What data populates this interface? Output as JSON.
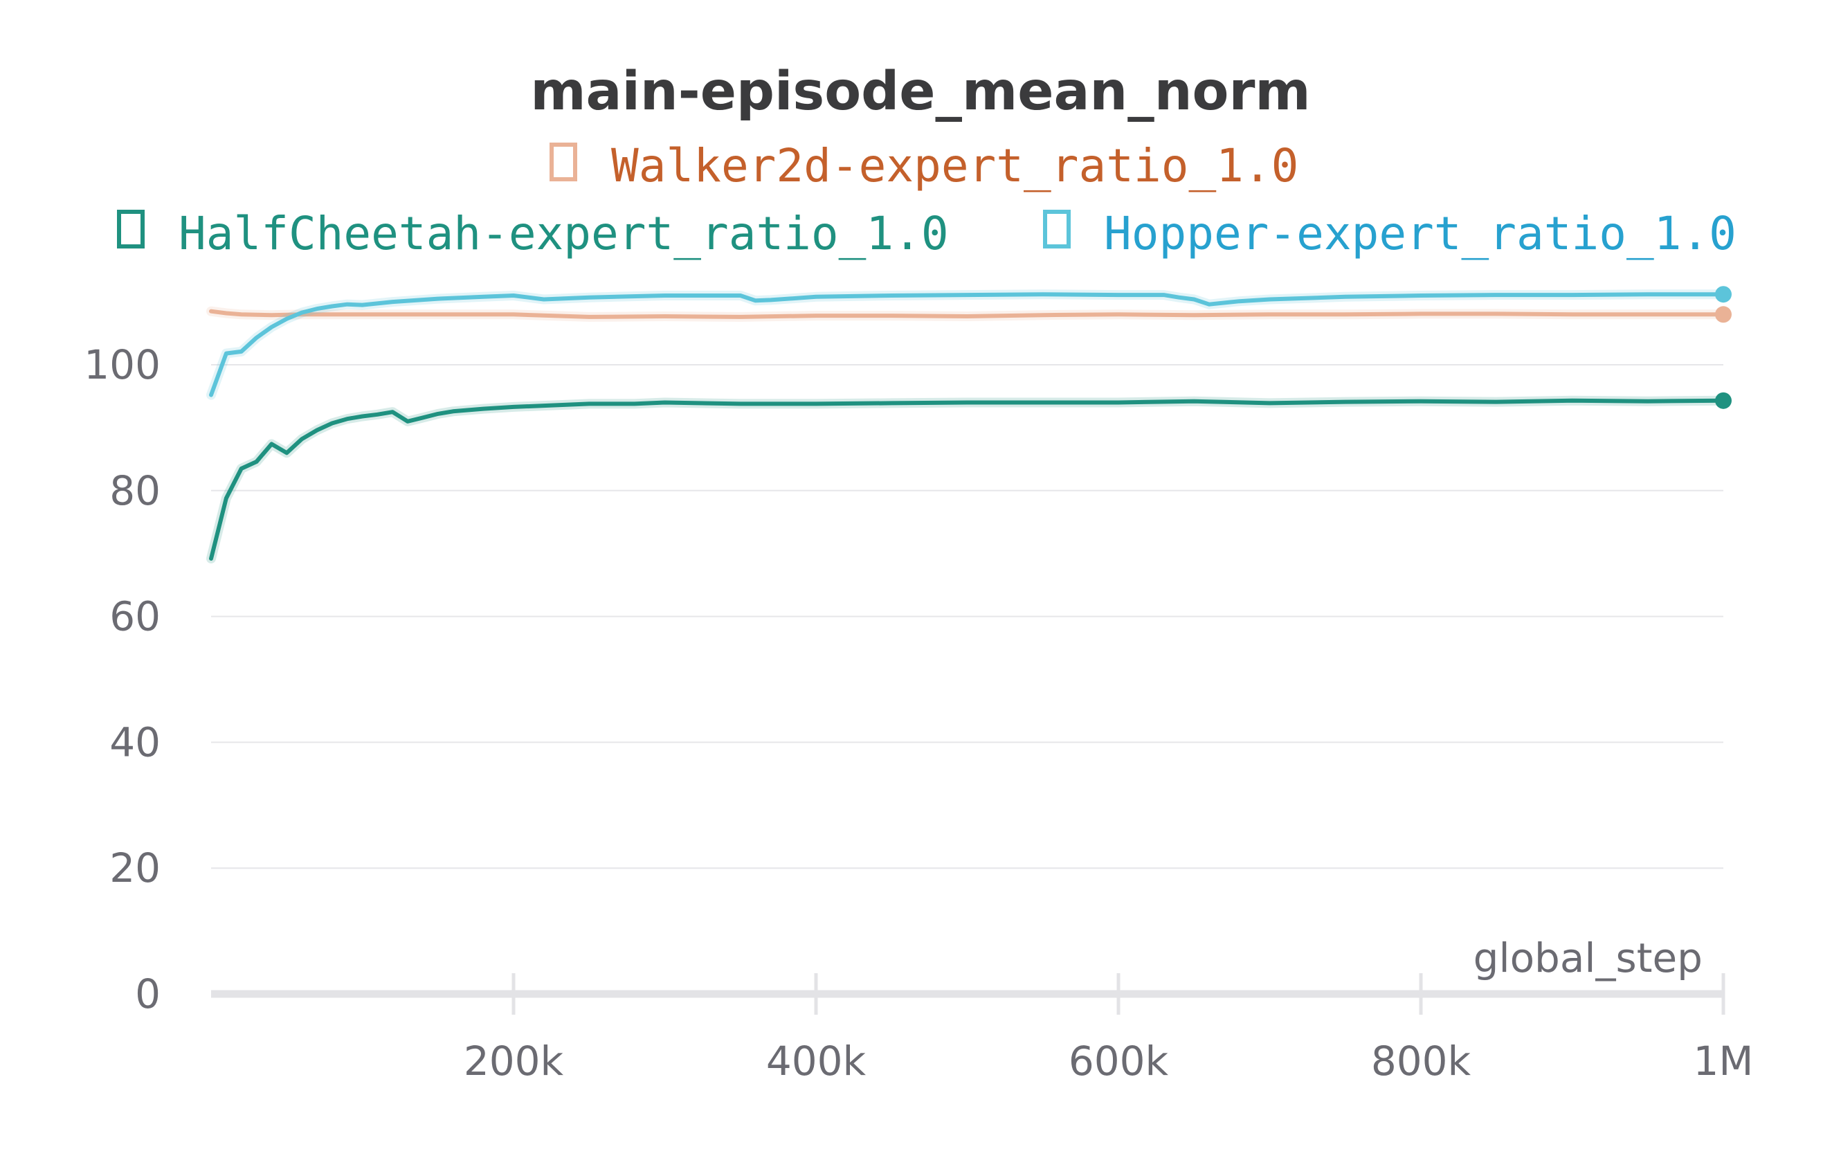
{
  "chart_data": {
    "type": "line",
    "title": "main-episode_mean_norm",
    "xlabel": "global_step",
    "ylabel": "",
    "xlim": [
      0,
      1000000
    ],
    "ylim": [
      0,
      112
    ],
    "x_ticks": [
      {
        "value": 200000,
        "label": "200k"
      },
      {
        "value": 400000,
        "label": "400k"
      },
      {
        "value": 600000,
        "label": "600k"
      },
      {
        "value": 800000,
        "label": "800k"
      },
      {
        "value": 1000000,
        "label": "1M"
      }
    ],
    "y_ticks": [
      {
        "value": 0,
        "label": "0"
      },
      {
        "value": 20,
        "label": "20"
      },
      {
        "value": 40,
        "label": "40"
      },
      {
        "value": 60,
        "label": "60"
      },
      {
        "value": 80,
        "label": "80"
      },
      {
        "value": 100,
        "label": "100"
      }
    ],
    "grid": true,
    "legend_position": "top",
    "series": [
      {
        "name": "Walker2d-expert_ratio_1.0",
        "color": "#eab296",
        "text_color": "#c4602b",
        "marker": "square-outline-glyph",
        "x": [
          0,
          10000,
          20000,
          40000,
          60000,
          80000,
          100000,
          150000,
          200000,
          250000,
          300000,
          350000,
          400000,
          450000,
          500000,
          550000,
          600000,
          650000,
          700000,
          750000,
          800000,
          850000,
          900000,
          950000,
          1000000
        ],
        "y": [
          108.5,
          108.2,
          108.0,
          107.9,
          108.0,
          108.0,
          108.0,
          108.0,
          108.0,
          107.6,
          107.7,
          107.6,
          107.8,
          107.8,
          107.7,
          107.9,
          108.0,
          107.9,
          108.0,
          108.0,
          108.1,
          108.1,
          108.0,
          108.0,
          108.0
        ]
      },
      {
        "name": "HalfCheetah-expert_ratio_1.0",
        "color": "#1f9180",
        "text_color": "#1f9180",
        "marker": "square-outline-glyph",
        "x": [
          0,
          10000,
          20000,
          30000,
          40000,
          50000,
          60000,
          70000,
          80000,
          90000,
          100000,
          110000,
          120000,
          130000,
          140000,
          150000,
          160000,
          180000,
          200000,
          220000,
          250000,
          280000,
          300000,
          350000,
          400000,
          450000,
          500000,
          550000,
          600000,
          650000,
          700000,
          750000,
          800000,
          850000,
          900000,
          950000,
          1000000
        ],
        "y": [
          69.2,
          78.8,
          83.5,
          84.6,
          87.4,
          86.0,
          88.2,
          89.6,
          90.7,
          91.4,
          91.8,
          92.1,
          92.5,
          91.0,
          91.6,
          92.2,
          92.6,
          93.0,
          93.3,
          93.5,
          93.8,
          93.8,
          94.0,
          93.8,
          93.8,
          93.9,
          94.0,
          94.0,
          94.0,
          94.2,
          93.9,
          94.1,
          94.2,
          94.1,
          94.3,
          94.2,
          94.3
        ]
      },
      {
        "name": "Hopper-expert_ratio_1.0",
        "color": "#5cc4da",
        "text_color": "#27a1cf",
        "marker": "square-outline-glyph",
        "x": [
          0,
          10000,
          20000,
          30000,
          40000,
          50000,
          60000,
          70000,
          80000,
          90000,
          100000,
          120000,
          150000,
          180000,
          200000,
          220000,
          250000,
          300000,
          350000,
          360000,
          370000,
          400000,
          450000,
          500000,
          550000,
          600000,
          630000,
          640000,
          650000,
          660000,
          680000,
          700000,
          750000,
          800000,
          850000,
          900000,
          950000,
          1000000
        ],
        "y": [
          95.2,
          101.8,
          102.1,
          104.3,
          106.0,
          107.3,
          108.3,
          108.9,
          109.3,
          109.6,
          109.5,
          110.0,
          110.5,
          110.8,
          111.0,
          110.4,
          110.7,
          111.0,
          111.0,
          110.2,
          110.3,
          110.8,
          111.0,
          111.1,
          111.2,
          111.1,
          111.1,
          110.7,
          110.4,
          109.6,
          110.1,
          110.4,
          110.8,
          111.0,
          111.1,
          111.1,
          111.2,
          111.2
        ]
      }
    ]
  }
}
